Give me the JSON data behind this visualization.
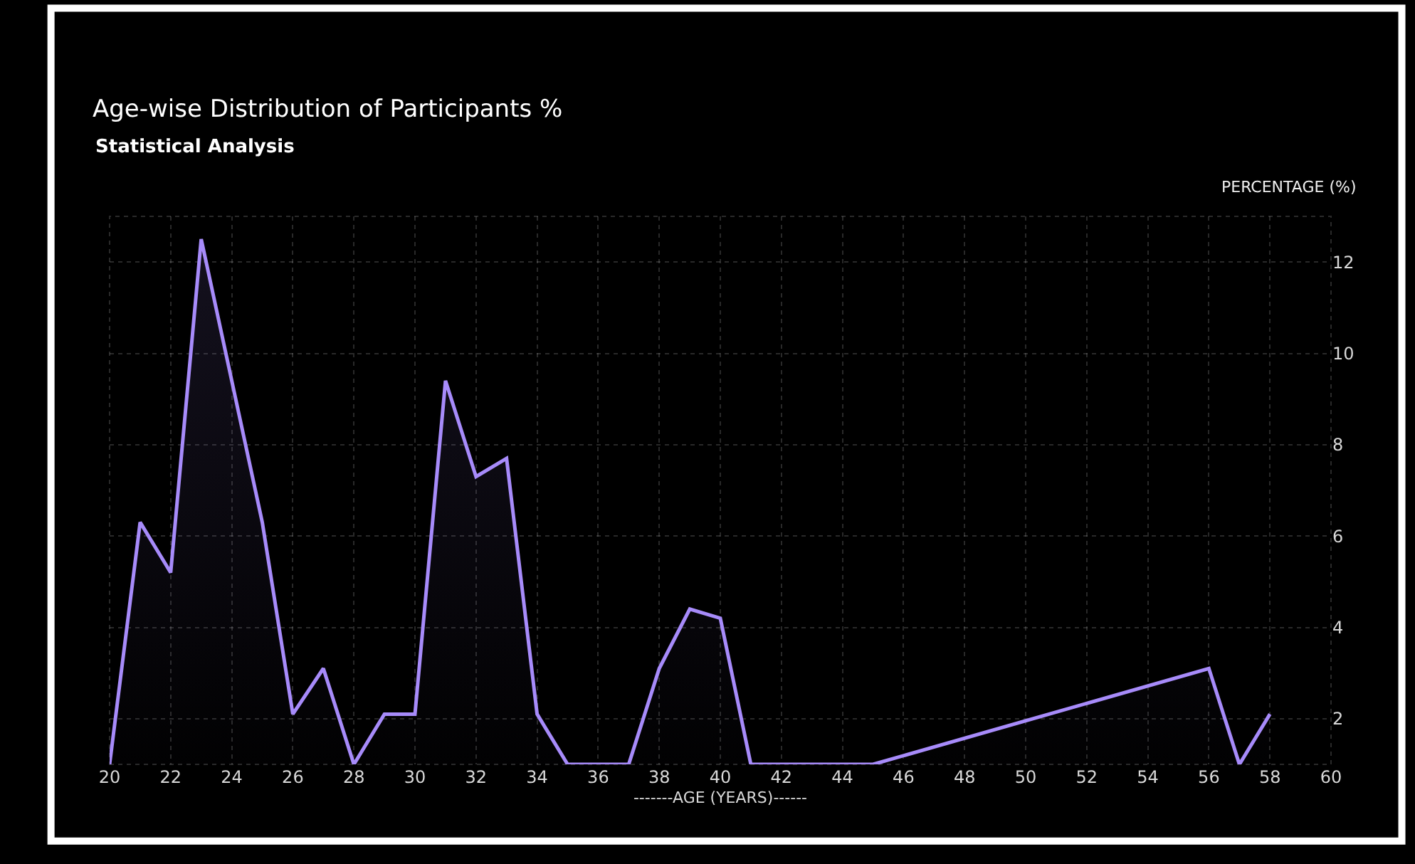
{
  "chart_data": {
    "type": "area",
    "title": "Age-wise Distribution of Participants %",
    "subtitle": "Statistical Analysis",
    "xlabel": "-------AGE (YEARS)------",
    "ylabel": "PERCENTAGE (%)",
    "x": [
      20,
      21,
      22,
      23,
      24,
      25,
      26,
      27,
      28,
      29,
      30,
      31,
      32,
      33,
      34,
      35,
      36,
      37,
      38,
      39,
      40,
      41,
      42,
      43,
      44,
      45,
      56,
      57,
      58
    ],
    "series": [
      {
        "color": "#a78bfa",
        "values": [
          1,
          6.3,
          5.2,
          12.5,
          9.4,
          6.3,
          2.1,
          3.1,
          1,
          2.1,
          2.1,
          9.4,
          7.3,
          7.7,
          2.1,
          1,
          1,
          1,
          3.1,
          4.4,
          4.2,
          1,
          1,
          1,
          1,
          1,
          3.1,
          1,
          2.1
        ]
      }
    ],
    "xlim": [
      20,
      60
    ],
    "xticks": [
      20,
      22,
      24,
      26,
      28,
      30,
      32,
      34,
      36,
      38,
      40,
      42,
      44,
      46,
      48,
      50,
      52,
      54,
      56,
      58,
      60
    ],
    "ylim": [
      1,
      13
    ],
    "yticks": [
      2,
      4,
      6,
      8,
      10,
      12
    ],
    "grid": true,
    "marker": "none",
    "line_style": "solid"
  }
}
